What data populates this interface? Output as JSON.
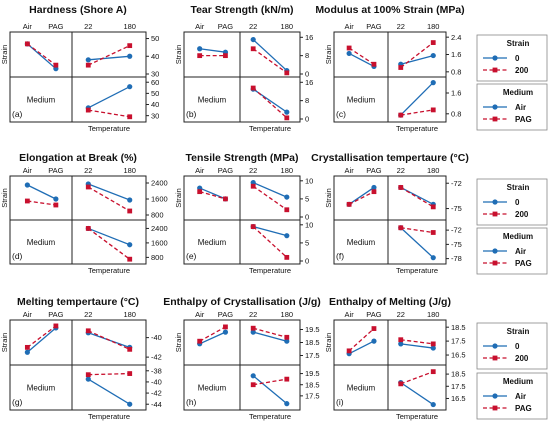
{
  "colors": {
    "series_a": "#1f6db5",
    "series_b": "#c8102e",
    "frame": "#222222"
  },
  "common": {
    "strain_label": "Strain",
    "medium_label": "Medium",
    "temperature_label": "Temperature",
    "medium_levels": [
      "Air",
      "PAG"
    ],
    "temperature_levels": [
      "22",
      "180"
    ]
  },
  "legends": [
    {
      "title": "Strain",
      "entries": [
        "0",
        "200"
      ]
    },
    {
      "title": "Medium",
      "entries": [
        "Air",
        "PAG"
      ]
    }
  ],
  "chart_data": [
    {
      "type": "line",
      "panel": "(a)",
      "title": "Hardness (Shore A)",
      "strain_by_medium": {
        "series": [
          {
            "name": "0",
            "values": [
              47,
              33
            ]
          },
          {
            "name": "200",
            "values": [
              47,
              35
            ]
          }
        ]
      },
      "strain_by_temperature": {
        "series": [
          {
            "name": "0",
            "values": [
              38,
              40
            ]
          },
          {
            "name": "200",
            "values": [
              35,
              46
            ]
          }
        ],
        "ylim": [
          30,
          52
        ],
        "yticks": [
          30,
          40,
          50
        ]
      },
      "medium_by_temperature": {
        "series": [
          {
            "name": "Air",
            "values": [
              37,
              56
            ]
          },
          {
            "name": "PAG",
            "values": [
              35,
              29
            ]
          }
        ],
        "ylim": [
          27,
          62
        ],
        "yticks": [
          30,
          40,
          50,
          60
        ]
      }
    },
    {
      "type": "line",
      "panel": "(b)",
      "title": "Tear Strength (kN/m)",
      "strain_by_medium": {
        "series": [
          {
            "name": "0",
            "values": [
              11,
              9.5
            ]
          },
          {
            "name": "200",
            "values": [
              8,
              8
            ]
          }
        ]
      },
      "strain_by_temperature": {
        "series": [
          {
            "name": "0",
            "values": [
              15,
              1.5
            ]
          },
          {
            "name": "200",
            "values": [
              11,
              0.5
            ]
          }
        ],
        "ylim": [
          0,
          17
        ],
        "yticks": [
          0,
          8,
          16
        ]
      },
      "medium_by_temperature": {
        "series": [
          {
            "name": "Air",
            "values": [
              13,
              3
            ]
          },
          {
            "name": "PAG",
            "values": [
              13.5,
              0.5
            ]
          }
        ],
        "ylim": [
          0,
          17
        ],
        "yticks": [
          0,
          8,
          16
        ]
      }
    },
    {
      "type": "line",
      "panel": "(c)",
      "title": "Modulus at 100% Strain (MPa)",
      "strain_by_medium": {
        "series": [
          {
            "name": "0",
            "values": [
              1.65,
              1.05
            ]
          },
          {
            "name": "200",
            "values": [
              1.9,
              1.15
            ]
          }
        ]
      },
      "strain_by_temperature": {
        "series": [
          {
            "name": "0",
            "values": [
              1.15,
              1.55
            ]
          },
          {
            "name": "200",
            "values": [
              1.0,
              2.15
            ]
          }
        ],
        "ylim": [
          0.7,
          2.5
        ],
        "yticks": [
          0.8,
          1.6,
          2.4
        ]
      },
      "medium_by_temperature": {
        "series": [
          {
            "name": "Air",
            "values": [
              0.75,
              2.0
            ]
          },
          {
            "name": "PAG",
            "values": [
              0.75,
              0.95
            ]
          }
        ],
        "ylim": [
          0.6,
          2.1
        ],
        "yticks": [
          0.8,
          1.6
        ]
      }
    },
    {
      "type": "line",
      "panel": "(d)",
      "title": "Elongation at Break (%)",
      "strain_by_medium": {
        "series": [
          {
            "name": "0",
            "values": [
              2300,
              1600
            ]
          },
          {
            "name": "200",
            "values": [
              1500,
              1300
            ]
          }
        ]
      },
      "strain_by_temperature": {
        "series": [
          {
            "name": "0",
            "values": [
              2350,
              1550
            ]
          },
          {
            "name": "200",
            "values": [
              2200,
              1000
            ]
          }
        ],
        "ylim": [
          700,
          2600
        ],
        "yticks": [
          800,
          1600,
          2400
        ]
      },
      "medium_by_temperature": {
        "series": [
          {
            "name": "Air",
            "values": [
              2400,
              1500
            ]
          },
          {
            "name": "PAG",
            "values": [
              2400,
              700
            ]
          }
        ],
        "ylim": [
          600,
          2700
        ],
        "yticks": [
          800,
          1600,
          2400
        ]
      }
    },
    {
      "type": "line",
      "panel": "(e)",
      "title": "Tensile Strength (MPa)",
      "strain_by_medium": {
        "series": [
          {
            "name": "0",
            "values": [
              8,
              5
            ]
          },
          {
            "name": "200",
            "values": [
              7,
              5
            ]
          }
        ]
      },
      "strain_by_temperature": {
        "series": [
          {
            "name": "0",
            "values": [
              9.5,
              5.5
            ]
          },
          {
            "name": "200",
            "values": [
              8.5,
              2
            ]
          }
        ],
        "ylim": [
          0,
          10.5
        ],
        "yticks": [
          0,
          5,
          10
        ]
      },
      "medium_by_temperature": {
        "series": [
          {
            "name": "Air",
            "values": [
              9.5,
              7
            ]
          },
          {
            "name": "PAG",
            "values": [
              9.5,
              1
            ]
          }
        ],
        "ylim": [
          0,
          10.5
        ],
        "yticks": [
          0,
          5,
          10
        ]
      }
    },
    {
      "type": "line",
      "panel": "(f)",
      "title": "Crystallisation tempertaure (°C)",
      "strain_by_medium": {
        "series": [
          {
            "name": "0",
            "values": [
              -74.5,
              -72.5
            ]
          },
          {
            "name": "200",
            "values": [
              -74.5,
              -73
            ]
          }
        ]
      },
      "strain_by_temperature": {
        "series": [
          {
            "name": "0",
            "values": [
              -72.5,
              -74.5
            ]
          },
          {
            "name": "200",
            "values": [
              -72.5,
              -74.8
            ]
          }
        ],
        "ylim": [
          -76,
          -71.5
        ],
        "yticks": [
          -75,
          -72
        ]
      },
      "medium_by_temperature": {
        "series": [
          {
            "name": "Air",
            "values": [
              -71.5,
              -77.8
            ]
          },
          {
            "name": "PAG",
            "values": [
              -71.5,
              -72.5
            ]
          }
        ],
        "ylim": [
          -78.5,
          -70.5
        ],
        "yticks": [
          -78,
          -75,
          -72
        ]
      }
    },
    {
      "type": "line",
      "panel": "(g)",
      "title": "Melting tempertaure (°C)",
      "strain_by_medium": {
        "series": [
          {
            "name": "0",
            "values": [
              -41.5,
              -39
            ]
          },
          {
            "name": "200",
            "values": [
              -41,
              -38.8
            ]
          }
        ]
      },
      "strain_by_temperature": {
        "series": [
          {
            "name": "0",
            "values": [
              -39.5,
              -41
            ]
          },
          {
            "name": "200",
            "values": [
              -39.3,
              -41.2
            ]
          }
        ],
        "ylim": [
          -42.5,
          -38.5
        ],
        "yticks": [
          -40,
          -42
        ]
      },
      "medium_by_temperature": {
        "series": [
          {
            "name": "Air",
            "values": [
              -39.5,
              -44
            ]
          },
          {
            "name": "PAG",
            "values": [
              -38.7,
              -38.5
            ]
          }
        ],
        "ylim": [
          -44.5,
          -37.5
        ],
        "yticks": [
          -38,
          -40,
          -42,
          -44
        ]
      }
    },
    {
      "type": "line",
      "panel": "(h)",
      "title": "Enthalpy of Crystallisation (J/g)",
      "strain_by_medium": {
        "series": [
          {
            "name": "0",
            "values": [
              18.4,
              19.3
            ]
          },
          {
            "name": "200",
            "values": [
              18.6,
              19.7
            ]
          }
        ]
      },
      "strain_by_temperature": {
        "series": [
          {
            "name": "0",
            "values": [
              19.3,
              18.6
            ]
          },
          {
            "name": "200",
            "values": [
              19.6,
              18.9
            ]
          }
        ],
        "ylim": [
          17.0,
          20.0
        ],
        "yticks": [
          17.5,
          18.5,
          19.5
        ]
      },
      "medium_by_temperature": {
        "series": [
          {
            "name": "Air",
            "values": [
              19.3,
              16.8
            ]
          },
          {
            "name": "PAG",
            "values": [
              18.5,
              19.0
            ]
          }
        ],
        "ylim": [
          16.5,
          20.0
        ],
        "yticks": [
          17.5,
          18.5,
          19.5
        ]
      }
    },
    {
      "type": "line",
      "panel": "(i)",
      "title": "Enthalpy of Melting (J/g)",
      "strain_by_medium": {
        "series": [
          {
            "name": "0",
            "values": [
              16.6,
              17.5
            ]
          },
          {
            "name": "200",
            "values": [
              16.8,
              18.4
            ]
          }
        ]
      },
      "strain_by_temperature": {
        "series": [
          {
            "name": "0",
            "values": [
              17.3,
              17.0
            ]
          },
          {
            "name": "200",
            "values": [
              17.6,
              17.3
            ]
          }
        ],
        "ylim": [
          16.0,
          18.8
        ],
        "yticks": [
          16.5,
          17.5,
          18.5
        ]
      },
      "medium_by_temperature": {
        "series": [
          {
            "name": "Air",
            "values": [
              17.8,
              16.0
            ]
          },
          {
            "name": "PAG",
            "values": [
              17.7,
              18.7
            ]
          }
        ],
        "ylim": [
          15.8,
          19.0
        ],
        "yticks": [
          16.5,
          17.5,
          18.5
        ]
      }
    }
  ]
}
